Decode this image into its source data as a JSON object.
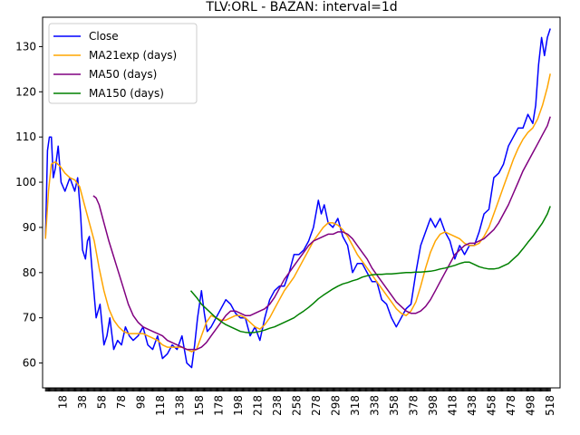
{
  "chart_data": {
    "type": "line",
    "title": "TLV:ORL - BAZAN: interval=1d",
    "xlabel": "",
    "ylabel": "",
    "xlim": [
      -3,
      528
    ],
    "ylim": [
      54.5,
      136.5
    ],
    "yticks": [
      60,
      70,
      80,
      90,
      100,
      110,
      120,
      130
    ],
    "xticks": [
      18,
      38,
      58,
      78,
      98,
      118,
      138,
      158,
      178,
      198,
      218,
      238,
      258,
      278,
      298,
      318,
      338,
      358,
      378,
      398,
      418,
      438,
      458,
      478,
      498,
      518
    ],
    "grid": false,
    "legend": "upper left",
    "series": [
      {
        "name": "Close",
        "color": "#0000ff",
        "x": [
          0,
          2,
          4,
          6,
          8,
          10,
          13,
          16,
          20,
          25,
          30,
          33,
          36,
          38,
          41,
          43,
          45,
          48,
          52,
          56,
          60,
          63,
          66,
          70,
          74,
          78,
          82,
          86,
          90,
          95,
          100,
          105,
          110,
          115,
          120,
          125,
          130,
          135,
          140,
          145,
          150,
          153,
          156,
          160,
          163,
          166,
          170,
          175,
          180,
          185,
          190,
          195,
          200,
          205,
          210,
          215,
          220,
          225,
          230,
          235,
          240,
          245,
          250,
          255,
          260,
          265,
          270,
          275,
          280,
          283,
          286,
          290,
          295,
          300,
          305,
          310,
          315,
          320,
          325,
          330,
          335,
          340,
          345,
          350,
          355,
          360,
          365,
          370,
          375,
          380,
          385,
          390,
          395,
          400,
          405,
          410,
          415,
          420,
          425,
          430,
          435,
          440,
          445,
          450,
          455,
          460,
          465,
          470,
          475,
          480,
          485,
          490,
          495,
          500,
          503,
          506,
          509,
          512,
          515,
          518
        ],
        "values": [
          87.5,
          107,
          110,
          110,
          101,
          103,
          108,
          100,
          98,
          101,
          98,
          101,
          93,
          85,
          83,
          87,
          88,
          80,
          70,
          73,
          64,
          66,
          70,
          63,
          65,
          64,
          68,
          66,
          65,
          66,
          68,
          64,
          63,
          66,
          61,
          62,
          64,
          63,
          66,
          60,
          59,
          64,
          70,
          76,
          71,
          67,
          68,
          70,
          72,
          74,
          73,
          71,
          70,
          70,
          66,
          68,
          65,
          70,
          74,
          76,
          77,
          77,
          80,
          84,
          84,
          85,
          87,
          90,
          96,
          93,
          95,
          91,
          90,
          92,
          88,
          86,
          80,
          82,
          82,
          80,
          78,
          78,
          74,
          73,
          70,
          68,
          70,
          72,
          73,
          80,
          86,
          89,
          92,
          90,
          92,
          89,
          87,
          83,
          86,
          84,
          86,
          86,
          89,
          93,
          94,
          101,
          102,
          104,
          108,
          110,
          112,
          112,
          115,
          113,
          117,
          126,
          132,
          128,
          132,
          134
        ]
      },
      {
        "name": "MA21exp (days)",
        "color": "#ffa500",
        "x": [
          0,
          3,
          6,
          10,
          15,
          20,
          25,
          30,
          35,
          40,
          45,
          50,
          55,
          60,
          65,
          70,
          75,
          80,
          85,
          90,
          95,
          100,
          105,
          110,
          115,
          120,
          125,
          130,
          135,
          140,
          145,
          150,
          155,
          160,
          165,
          170,
          175,
          180,
          185,
          190,
          195,
          200,
          205,
          210,
          215,
          220,
          225,
          230,
          235,
          240,
          245,
          250,
          255,
          260,
          265,
          270,
          275,
          280,
          285,
          290,
          295,
          300,
          305,
          310,
          315,
          320,
          325,
          330,
          335,
          340,
          345,
          350,
          355,
          360,
          365,
          370,
          375,
          380,
          385,
          390,
          395,
          400,
          405,
          410,
          415,
          420,
          425,
          430,
          435,
          440,
          445,
          450,
          455,
          460,
          465,
          470,
          475,
          480,
          485,
          490,
          495,
          500,
          505,
          510,
          515,
          518
        ],
        "values": [
          87.5,
          98,
          104,
          104.5,
          103.5,
          102,
          101,
          100.5,
          99,
          95,
          91,
          87,
          81,
          76,
          72,
          69.5,
          68,
          67,
          66.5,
          66.5,
          66.5,
          66.5,
          66,
          65.5,
          65,
          64,
          63.5,
          63.5,
          63.5,
          63.5,
          63,
          62.5,
          63,
          66,
          69,
          70.5,
          70,
          69.5,
          69.5,
          70,
          70.5,
          70.5,
          70,
          69,
          68,
          67.5,
          68.5,
          70,
          72,
          74,
          76,
          77.5,
          79,
          81,
          83,
          85,
          87,
          88.5,
          90,
          91,
          91,
          90.5,
          89.5,
          88,
          86,
          84,
          82.5,
          81,
          79.5,
          78,
          76.5,
          75,
          73.5,
          72,
          71,
          70.5,
          71.5,
          73.5,
          77,
          81,
          84.5,
          87,
          88.5,
          89,
          88.5,
          88,
          87.5,
          86.5,
          86,
          86,
          86.5,
          88,
          90,
          93,
          96,
          99,
          102,
          105,
          107.5,
          109.5,
          111,
          112,
          114,
          117,
          121,
          124
        ]
      },
      {
        "name": "MA50 (days)",
        "color": "#800080",
        "x": [
          49,
          52,
          55,
          60,
          65,
          70,
          75,
          80,
          85,
          90,
          95,
          100,
          105,
          110,
          115,
          120,
          125,
          130,
          135,
          140,
          145,
          150,
          155,
          160,
          165,
          170,
          175,
          180,
          185,
          190,
          195,
          200,
          205,
          210,
          215,
          220,
          225,
          230,
          235,
          240,
          245,
          250,
          255,
          260,
          265,
          270,
          275,
          280,
          285,
          290,
          295,
          300,
          305,
          310,
          315,
          320,
          325,
          330,
          335,
          340,
          345,
          350,
          355,
          360,
          365,
          370,
          375,
          380,
          385,
          390,
          395,
          400,
          405,
          410,
          415,
          420,
          425,
          430,
          435,
          440,
          445,
          450,
          455,
          460,
          465,
          470,
          475,
          480,
          485,
          490,
          495,
          500,
          505,
          510,
          515,
          518
        ],
        "values": [
          97,
          96.5,
          95,
          91,
          87,
          83.5,
          80,
          76.5,
          73,
          70.5,
          69,
          68,
          67.5,
          67,
          66.5,
          66,
          65,
          64.5,
          64,
          63.5,
          63,
          63,
          63,
          63.5,
          64.5,
          66,
          67.5,
          69,
          70.5,
          71.5,
          71.5,
          71,
          70.5,
          70.5,
          71,
          71.5,
          72,
          73,
          74.5,
          76.5,
          78.5,
          80,
          81.5,
          83,
          84.5,
          86,
          87,
          87.5,
          88,
          88.5,
          88.5,
          89,
          89,
          88.5,
          87.5,
          86,
          84.5,
          83,
          81,
          79.5,
          78,
          76.5,
          75,
          73.5,
          72.5,
          71.5,
          71,
          71,
          71.5,
          72.5,
          74,
          76,
          78,
          80,
          82,
          84,
          85,
          86,
          86.5,
          86.5,
          87,
          87.5,
          88.5,
          89.5,
          91,
          93,
          95,
          97.5,
          100,
          102.5,
          104.5,
          106.5,
          108.5,
          110.5,
          112.5,
          114.5
        ]
      },
      {
        "name": "MA150 (days)",
        "color": "#008000",
        "x": [
          149,
          155,
          160,
          165,
          170,
          175,
          180,
          185,
          190,
          195,
          200,
          205,
          210,
          215,
          220,
          225,
          230,
          235,
          240,
          245,
          250,
          255,
          260,
          265,
          270,
          275,
          280,
          285,
          290,
          295,
          300,
          305,
          310,
          315,
          320,
          325,
          330,
          335,
          340,
          345,
          350,
          355,
          360,
          365,
          370,
          375,
          380,
          385,
          390,
          395,
          400,
          405,
          410,
          415,
          420,
          425,
          430,
          435,
          440,
          445,
          450,
          455,
          460,
          465,
          470,
          475,
          480,
          485,
          490,
          495,
          500,
          505,
          510,
          515,
          518
        ],
        "values": [
          76,
          74.5,
          73,
          72,
          71,
          70,
          69.2,
          68.5,
          68,
          67.5,
          67,
          66.8,
          66.7,
          66.8,
          67,
          67.3,
          67.7,
          68,
          68.5,
          69,
          69.5,
          70,
          70.8,
          71.5,
          72.3,
          73.2,
          74.2,
          75,
          75.7,
          76.4,
          77,
          77.5,
          77.8,
          78.2,
          78.5,
          79,
          79.3,
          79.5,
          79.6,
          79.6,
          79.7,
          79.7,
          79.8,
          79.9,
          80,
          80,
          80.1,
          80.1,
          80.2,
          80.3,
          80.5,
          80.8,
          81,
          81.3,
          81.6,
          82,
          82.3,
          82.3,
          81.8,
          81.3,
          81,
          80.8,
          80.8,
          81,
          81.5,
          82,
          83,
          84,
          85.3,
          86.7,
          88,
          89.5,
          91,
          93,
          94.7
        ]
      }
    ]
  }
}
